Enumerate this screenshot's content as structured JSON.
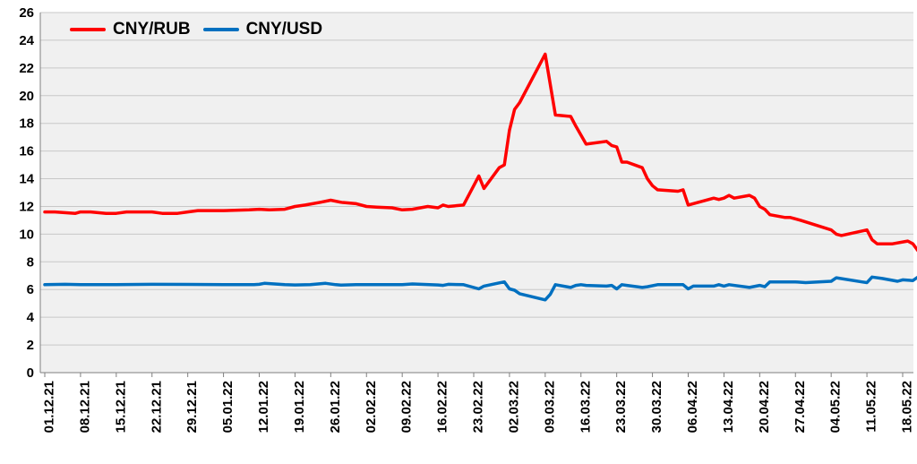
{
  "chart_data": {
    "type": "line",
    "title": "",
    "xlabel": "",
    "ylabel": "",
    "ylim": [
      0,
      26
    ],
    "y_ticks": [
      0,
      2,
      4,
      6,
      8,
      10,
      12,
      14,
      16,
      18,
      20,
      22,
      24,
      26
    ],
    "grid": "horizontal",
    "legend_position": "top-left",
    "background": "#f0f0f0",
    "x_tick_labels": [
      "01.12.21",
      "08.12.21",
      "15.12.21",
      "22.12.21",
      "29.12.21",
      "05.01.22",
      "12.01.22",
      "19.01.22",
      "26.01.22",
      "02.02.22",
      "09.02.22",
      "16.02.22",
      "23.02.22",
      "02.03.22",
      "09.03.22",
      "16.03.22",
      "23.03.22",
      "30.03.22",
      "06.04.22",
      "13.04.22",
      "20.04.22",
      "27.04.22",
      "04.05.22",
      "11.05.22",
      "18.05.22"
    ],
    "series": [
      {
        "name": "CNY/RUB",
        "color": "#ff0000",
        "points": [
          [
            "01.12.21",
            11.6
          ],
          [
            "03.12.21",
            11.6
          ],
          [
            "07.12.21",
            11.5
          ],
          [
            "08.12.21",
            11.6
          ],
          [
            "10.12.21",
            11.6
          ],
          [
            "13.12.21",
            11.5
          ],
          [
            "15.12.21",
            11.5
          ],
          [
            "17.12.21",
            11.6
          ],
          [
            "22.12.21",
            11.6
          ],
          [
            "24.12.21",
            11.5
          ],
          [
            "27.12.21",
            11.5
          ],
          [
            "29.12.21",
            11.6
          ],
          [
            "31.12.21",
            11.7
          ],
          [
            "05.01.22",
            11.7
          ],
          [
            "10.01.22",
            11.75
          ],
          [
            "12.01.22",
            11.8
          ],
          [
            "14.01.22",
            11.75
          ],
          [
            "17.01.22",
            11.8
          ],
          [
            "19.01.22",
            12.0
          ],
          [
            "21.01.22",
            12.1
          ],
          [
            "24.01.22",
            12.3
          ],
          [
            "26.01.22",
            12.45
          ],
          [
            "28.01.22",
            12.3
          ],
          [
            "31.01.22",
            12.2
          ],
          [
            "02.02.22",
            12.0
          ],
          [
            "04.02.22",
            11.95
          ],
          [
            "07.02.22",
            11.9
          ],
          [
            "09.02.22",
            11.75
          ],
          [
            "11.02.22",
            11.8
          ],
          [
            "14.02.22",
            12.0
          ],
          [
            "16.02.22",
            11.9
          ],
          [
            "17.02.22",
            12.1
          ],
          [
            "18.02.22",
            12.0
          ],
          [
            "21.02.22",
            12.1
          ],
          [
            "23.02.22",
            13.5
          ],
          [
            "24.02.22",
            14.2
          ],
          [
            "25.02.22",
            13.3
          ],
          [
            "28.02.22",
            14.8
          ],
          [
            "01.03.22",
            15.0
          ],
          [
            "02.03.22",
            17.5
          ],
          [
            "03.03.22",
            19.0
          ],
          [
            "04.03.22",
            19.5
          ],
          [
            "09.03.22",
            23.0
          ],
          [
            "11.03.22",
            18.6
          ],
          [
            "14.03.22",
            18.5
          ],
          [
            "15.03.22",
            17.8
          ],
          [
            "17.03.22",
            16.5
          ],
          [
            "21.03.22",
            16.7
          ],
          [
            "22.03.22",
            16.4
          ],
          [
            "23.03.22",
            16.3
          ],
          [
            "24.03.22",
            15.2
          ],
          [
            "25.03.22",
            15.2
          ],
          [
            "28.03.22",
            14.8
          ],
          [
            "29.03.22",
            14.0
          ],
          [
            "30.03.22",
            13.5
          ],
          [
            "31.03.22",
            13.2
          ],
          [
            "04.04.22",
            13.1
          ],
          [
            "05.04.22",
            13.2
          ],
          [
            "06.04.22",
            12.1
          ],
          [
            "11.04.22",
            12.6
          ],
          [
            "12.04.22",
            12.5
          ],
          [
            "13.04.22",
            12.6
          ],
          [
            "14.04.22",
            12.8
          ],
          [
            "15.04.22",
            12.6
          ],
          [
            "18.04.22",
            12.8
          ],
          [
            "19.04.22",
            12.6
          ],
          [
            "20.04.22",
            12.0
          ],
          [
            "21.04.22",
            11.8
          ],
          [
            "22.04.22",
            11.4
          ],
          [
            "25.04.22",
            11.2
          ],
          [
            "26.04.22",
            11.2
          ],
          [
            "28.04.22",
            11.0
          ],
          [
            "04.05.22",
            10.3
          ],
          [
            "05.05.22",
            10.0
          ],
          [
            "06.05.22",
            9.9
          ],
          [
            "11.05.22",
            10.3
          ],
          [
            "12.05.22",
            9.6
          ],
          [
            "13.05.22",
            9.3
          ],
          [
            "16.05.22",
            9.3
          ],
          [
            "19.05.22",
            9.5
          ],
          [
            "20.05.22",
            9.3
          ],
          [
            "21.05.22",
            8.8
          ]
        ]
      },
      {
        "name": "CNY/USD",
        "color": "#0070c0",
        "points": [
          [
            "01.12.21",
            6.35
          ],
          [
            "05.12.21",
            6.38
          ],
          [
            "08.12.21",
            6.35
          ],
          [
            "15.12.21",
            6.35
          ],
          [
            "22.12.21",
            6.38
          ],
          [
            "29.12.21",
            6.37
          ],
          [
            "05.01.22",
            6.35
          ],
          [
            "11.01.22",
            6.36
          ],
          [
            "12.01.22",
            6.38
          ],
          [
            "13.01.22",
            6.45
          ],
          [
            "17.01.22",
            6.35
          ],
          [
            "19.01.22",
            6.33
          ],
          [
            "22.01.22",
            6.35
          ],
          [
            "25.01.22",
            6.45
          ],
          [
            "27.01.22",
            6.35
          ],
          [
            "28.01.22",
            6.32
          ],
          [
            "31.01.22",
            6.36
          ],
          [
            "02.02.22",
            6.36
          ],
          [
            "09.02.22",
            6.36
          ],
          [
            "11.02.22",
            6.4
          ],
          [
            "16.02.22",
            6.33
          ],
          [
            "17.02.22",
            6.3
          ],
          [
            "18.02.22",
            6.38
          ],
          [
            "21.02.22",
            6.35
          ],
          [
            "24.02.22",
            6.05
          ],
          [
            "25.02.22",
            6.25
          ],
          [
            "28.02.22",
            6.48
          ],
          [
            "01.03.22",
            6.55
          ],
          [
            "02.03.22",
            6.05
          ],
          [
            "03.03.22",
            5.95
          ],
          [
            "04.03.22",
            5.7
          ],
          [
            "09.03.22",
            5.25
          ],
          [
            "10.03.22",
            5.65
          ],
          [
            "11.03.22",
            6.35
          ],
          [
            "14.03.22",
            6.15
          ],
          [
            "15.03.22",
            6.3
          ],
          [
            "16.03.22",
            6.35
          ],
          [
            "17.03.22",
            6.3
          ],
          [
            "21.03.22",
            6.25
          ],
          [
            "22.03.22",
            6.3
          ],
          [
            "23.03.22",
            6.05
          ],
          [
            "24.03.22",
            6.35
          ],
          [
            "25.03.22",
            6.3
          ],
          [
            "28.03.22",
            6.15
          ],
          [
            "29.03.22",
            6.2
          ],
          [
            "31.03.22",
            6.35
          ],
          [
            "05.04.22",
            6.35
          ],
          [
            "06.04.22",
            6.05
          ],
          [
            "07.04.22",
            6.25
          ],
          [
            "11.04.22",
            6.25
          ],
          [
            "12.04.22",
            6.35
          ],
          [
            "13.04.22",
            6.25
          ],
          [
            "14.04.22",
            6.35
          ],
          [
            "18.04.22",
            6.15
          ],
          [
            "20.04.22",
            6.3
          ],
          [
            "21.04.22",
            6.2
          ],
          [
            "22.04.22",
            6.55
          ],
          [
            "27.04.22",
            6.55
          ],
          [
            "29.04.22",
            6.5
          ],
          [
            "04.05.22",
            6.6
          ],
          [
            "05.05.22",
            6.85
          ],
          [
            "10.05.22",
            6.55
          ],
          [
            "11.05.22",
            6.5
          ],
          [
            "12.05.22",
            6.9
          ],
          [
            "14.05.22",
            6.8
          ],
          [
            "17.05.22",
            6.6
          ],
          [
            "18.05.22",
            6.7
          ],
          [
            "20.05.22",
            6.65
          ],
          [
            "21.05.22",
            6.9
          ]
        ]
      }
    ]
  }
}
